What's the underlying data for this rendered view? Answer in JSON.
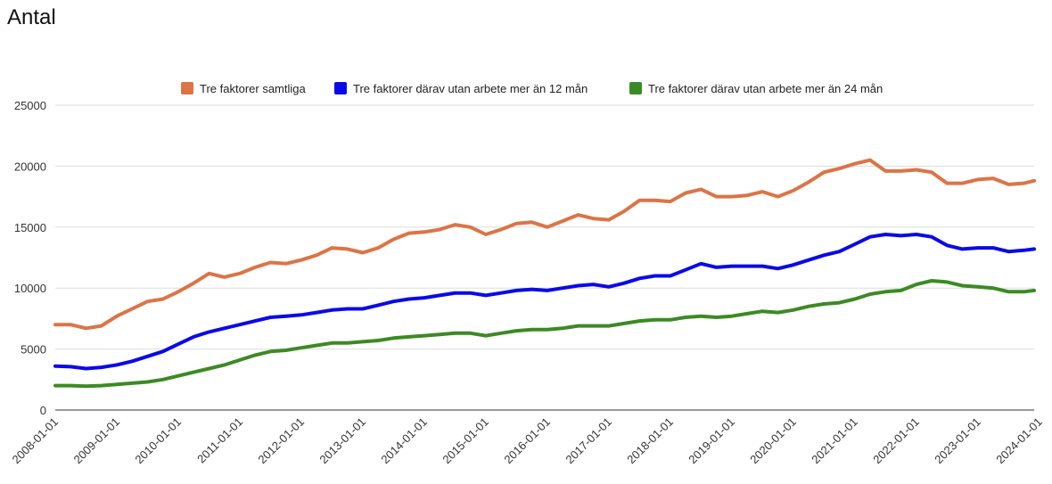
{
  "page": {
    "title": "Antal"
  },
  "chart_data": {
    "type": "line",
    "title": "Antal",
    "xlabel": "",
    "ylabel": "",
    "ylim": [
      0,
      25000
    ],
    "yticks": [
      0,
      5000,
      10000,
      15000,
      20000,
      25000
    ],
    "xticks": [
      "2008-01-01",
      "2009-01-01",
      "2010-01-01",
      "2011-01-01",
      "2012-01-01",
      "2013-01-01",
      "2014-01-01",
      "2015-01-01",
      "2016-01-01",
      "2017-01-01",
      "2018-01-01",
      "2019-01-01",
      "2020-01-01",
      "2021-01-01",
      "2022-01-01",
      "2023-01-01",
      "2024-01-01"
    ],
    "x_start": "2008-01",
    "x_end": "2023-12",
    "legend_position": "top",
    "grid": true,
    "series": [
      {
        "name": "Tre faktorer samtliga",
        "color": "#dc7446",
        "values": [
          [
            "2008-01",
            7000
          ],
          [
            "2008-04",
            7000
          ],
          [
            "2008-07",
            6700
          ],
          [
            "2008-10",
            6900
          ],
          [
            "2009-01",
            7700
          ],
          [
            "2009-04",
            8300
          ],
          [
            "2009-07",
            8900
          ],
          [
            "2009-10",
            9100
          ],
          [
            "2010-01",
            9700
          ],
          [
            "2010-04",
            10400
          ],
          [
            "2010-07",
            11200
          ],
          [
            "2010-10",
            10900
          ],
          [
            "2011-01",
            11200
          ],
          [
            "2011-04",
            11700
          ],
          [
            "2011-07",
            12100
          ],
          [
            "2011-10",
            12000
          ],
          [
            "2012-01",
            12300
          ],
          [
            "2012-04",
            12700
          ],
          [
            "2012-07",
            13300
          ],
          [
            "2012-10",
            13200
          ],
          [
            "2013-01",
            12900
          ],
          [
            "2013-04",
            13300
          ],
          [
            "2013-07",
            14000
          ],
          [
            "2013-10",
            14500
          ],
          [
            "2014-01",
            14600
          ],
          [
            "2014-04",
            14800
          ],
          [
            "2014-07",
            15200
          ],
          [
            "2014-10",
            15000
          ],
          [
            "2015-01",
            14400
          ],
          [
            "2015-04",
            14800
          ],
          [
            "2015-07",
            15300
          ],
          [
            "2015-10",
            15400
          ],
          [
            "2016-01",
            15000
          ],
          [
            "2016-04",
            15500
          ],
          [
            "2016-07",
            16000
          ],
          [
            "2016-10",
            15700
          ],
          [
            "2017-01",
            15600
          ],
          [
            "2017-04",
            16300
          ],
          [
            "2017-07",
            17200
          ],
          [
            "2017-10",
            17200
          ],
          [
            "2018-01",
            17100
          ],
          [
            "2018-04",
            17800
          ],
          [
            "2018-07",
            18100
          ],
          [
            "2018-10",
            17500
          ],
          [
            "2019-01",
            17500
          ],
          [
            "2019-04",
            17600
          ],
          [
            "2019-07",
            17900
          ],
          [
            "2019-10",
            17500
          ],
          [
            "2020-01",
            18000
          ],
          [
            "2020-04",
            18700
          ],
          [
            "2020-07",
            19500
          ],
          [
            "2020-10",
            19800
          ],
          [
            "2021-01",
            20200
          ],
          [
            "2021-04",
            20500
          ],
          [
            "2021-07",
            19600
          ],
          [
            "2021-10",
            19600
          ],
          [
            "2022-01",
            19700
          ],
          [
            "2022-04",
            19500
          ],
          [
            "2022-07",
            18600
          ],
          [
            "2022-10",
            18600
          ],
          [
            "2023-01",
            18900
          ],
          [
            "2023-04",
            19000
          ],
          [
            "2023-07",
            18500
          ],
          [
            "2023-10",
            18600
          ],
          [
            "2023-12",
            18800
          ]
        ]
      },
      {
        "name": "Tre faktorer därav utan arbete mer än 12 mån",
        "color": "#0a0ae8",
        "values": [
          [
            "2008-01",
            3600
          ],
          [
            "2008-04",
            3550
          ],
          [
            "2008-07",
            3400
          ],
          [
            "2008-10",
            3500
          ],
          [
            "2009-01",
            3700
          ],
          [
            "2009-04",
            4000
          ],
          [
            "2009-07",
            4400
          ],
          [
            "2009-10",
            4800
          ],
          [
            "2010-01",
            5400
          ],
          [
            "2010-04",
            6000
          ],
          [
            "2010-07",
            6400
          ],
          [
            "2010-10",
            6700
          ],
          [
            "2011-01",
            7000
          ],
          [
            "2011-04",
            7300
          ],
          [
            "2011-07",
            7600
          ],
          [
            "2011-10",
            7700
          ],
          [
            "2012-01",
            7800
          ],
          [
            "2012-04",
            8000
          ],
          [
            "2012-07",
            8200
          ],
          [
            "2012-10",
            8300
          ],
          [
            "2013-01",
            8300
          ],
          [
            "2013-04",
            8600
          ],
          [
            "2013-07",
            8900
          ],
          [
            "2013-10",
            9100
          ],
          [
            "2014-01",
            9200
          ],
          [
            "2014-04",
            9400
          ],
          [
            "2014-07",
            9600
          ],
          [
            "2014-10",
            9600
          ],
          [
            "2015-01",
            9400
          ],
          [
            "2015-04",
            9600
          ],
          [
            "2015-07",
            9800
          ],
          [
            "2015-10",
            9900
          ],
          [
            "2016-01",
            9800
          ],
          [
            "2016-04",
            10000
          ],
          [
            "2016-07",
            10200
          ],
          [
            "2016-10",
            10300
          ],
          [
            "2017-01",
            10100
          ],
          [
            "2017-04",
            10400
          ],
          [
            "2017-07",
            10800
          ],
          [
            "2017-10",
            11000
          ],
          [
            "2018-01",
            11000
          ],
          [
            "2018-04",
            11500
          ],
          [
            "2018-07",
            12000
          ],
          [
            "2018-10",
            11700
          ],
          [
            "2019-01",
            11800
          ],
          [
            "2019-04",
            11800
          ],
          [
            "2019-07",
            11800
          ],
          [
            "2019-10",
            11600
          ],
          [
            "2020-01",
            11900
          ],
          [
            "2020-04",
            12300
          ],
          [
            "2020-07",
            12700
          ],
          [
            "2020-10",
            13000
          ],
          [
            "2021-01",
            13600
          ],
          [
            "2021-04",
            14200
          ],
          [
            "2021-07",
            14400
          ],
          [
            "2021-10",
            14300
          ],
          [
            "2022-01",
            14400
          ],
          [
            "2022-04",
            14200
          ],
          [
            "2022-07",
            13500
          ],
          [
            "2022-10",
            13200
          ],
          [
            "2023-01",
            13300
          ],
          [
            "2023-04",
            13300
          ],
          [
            "2023-07",
            13000
          ],
          [
            "2023-10",
            13100
          ],
          [
            "2023-12",
            13200
          ]
        ]
      },
      {
        "name": "Tre faktorer därav utan arbete mer än 24 mån",
        "color": "#3c8a24",
        "values": [
          [
            "2008-01",
            2000
          ],
          [
            "2008-04",
            2000
          ],
          [
            "2008-07",
            1950
          ],
          [
            "2008-10",
            2000
          ],
          [
            "2009-01",
            2100
          ],
          [
            "2009-04",
            2200
          ],
          [
            "2009-07",
            2300
          ],
          [
            "2009-10",
            2500
          ],
          [
            "2010-01",
            2800
          ],
          [
            "2010-04",
            3100
          ],
          [
            "2010-07",
            3400
          ],
          [
            "2010-10",
            3700
          ],
          [
            "2011-01",
            4100
          ],
          [
            "2011-04",
            4500
          ],
          [
            "2011-07",
            4800
          ],
          [
            "2011-10",
            4900
          ],
          [
            "2012-01",
            5100
          ],
          [
            "2012-04",
            5300
          ],
          [
            "2012-07",
            5500
          ],
          [
            "2012-10",
            5500
          ],
          [
            "2013-01",
            5600
          ],
          [
            "2013-04",
            5700
          ],
          [
            "2013-07",
            5900
          ],
          [
            "2013-10",
            6000
          ],
          [
            "2014-01",
            6100
          ],
          [
            "2014-04",
            6200
          ],
          [
            "2014-07",
            6300
          ],
          [
            "2014-10",
            6300
          ],
          [
            "2015-01",
            6100
          ],
          [
            "2015-04",
            6300
          ],
          [
            "2015-07",
            6500
          ],
          [
            "2015-10",
            6600
          ],
          [
            "2016-01",
            6600
          ],
          [
            "2016-04",
            6700
          ],
          [
            "2016-07",
            6900
          ],
          [
            "2016-10",
            6900
          ],
          [
            "2017-01",
            6900
          ],
          [
            "2017-04",
            7100
          ],
          [
            "2017-07",
            7300
          ],
          [
            "2017-10",
            7400
          ],
          [
            "2018-01",
            7400
          ],
          [
            "2018-04",
            7600
          ],
          [
            "2018-07",
            7700
          ],
          [
            "2018-10",
            7600
          ],
          [
            "2019-01",
            7700
          ],
          [
            "2019-04",
            7900
          ],
          [
            "2019-07",
            8100
          ],
          [
            "2019-10",
            8000
          ],
          [
            "2020-01",
            8200
          ],
          [
            "2020-04",
            8500
          ],
          [
            "2020-07",
            8700
          ],
          [
            "2020-10",
            8800
          ],
          [
            "2021-01",
            9100
          ],
          [
            "2021-04",
            9500
          ],
          [
            "2021-07",
            9700
          ],
          [
            "2021-10",
            9800
          ],
          [
            "2022-01",
            10300
          ],
          [
            "2022-04",
            10600
          ],
          [
            "2022-07",
            10500
          ],
          [
            "2022-10",
            10200
          ],
          [
            "2023-01",
            10100
          ],
          [
            "2023-04",
            10000
          ],
          [
            "2023-07",
            9700
          ],
          [
            "2023-10",
            9700
          ],
          [
            "2023-12",
            9800
          ]
        ]
      }
    ]
  }
}
